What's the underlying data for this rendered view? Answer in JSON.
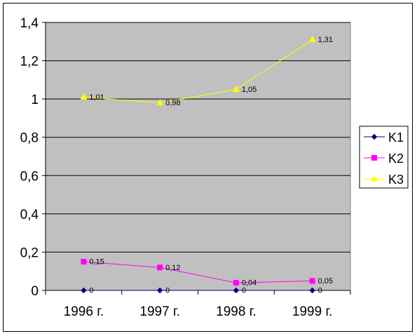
{
  "chart_data": {
    "type": "line",
    "categories": [
      "1996 г.",
      "1997 г.",
      "1998 г.",
      "1999 г."
    ],
    "series": [
      {
        "name": "K1",
        "values": [
          0,
          0,
          0,
          0
        ],
        "labels": [
          "0",
          "0",
          "0",
          "0"
        ],
        "color": "#000080",
        "marker": "diamond"
      },
      {
        "name": "K2",
        "values": [
          0.15,
          0.12,
          0.04,
          0.05
        ],
        "labels": [
          "0,15",
          "0,12",
          "0,04",
          "0,05"
        ],
        "color": "#ff00ff",
        "marker": "square"
      },
      {
        "name": "K3",
        "values": [
          1.01,
          0.98,
          1.05,
          1.31
        ],
        "labels": [
          "1,01",
          "0,98",
          "1,05",
          "1,31"
        ],
        "color": "#ffff00",
        "marker": "triangle"
      }
    ],
    "ylim": [
      0,
      1.4
    ],
    "yticks": [
      "0",
      "0,2",
      "0,4",
      "0,6",
      "0,8",
      "1",
      "1,2",
      "1,4"
    ],
    "grid": true,
    "plot_background": "#c0c0c0",
    "legend_position": "right",
    "title": "",
    "xlabel": "",
    "ylabel": ""
  }
}
